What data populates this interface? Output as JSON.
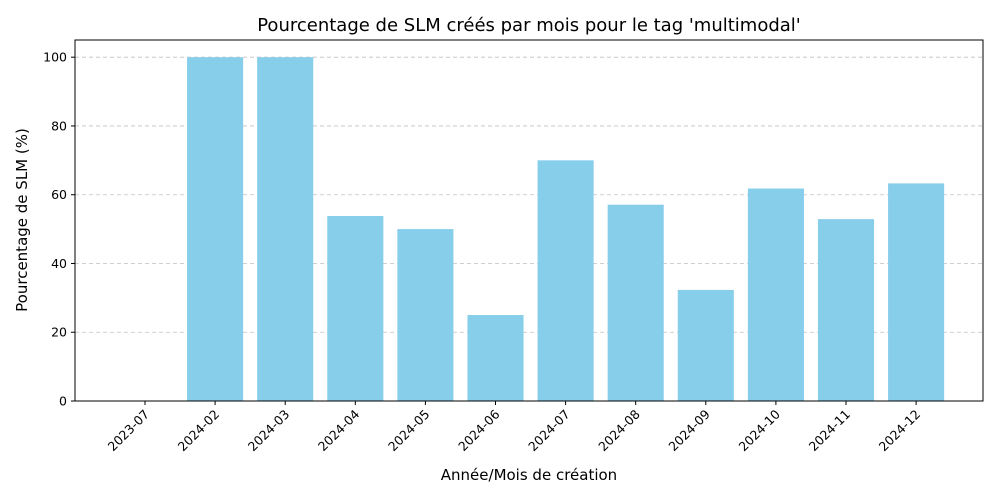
{
  "chart_data": {
    "type": "bar",
    "title": "Pourcentage de SLM créés par mois pour le tag 'multimodal'",
    "xlabel": "Année/Mois de création",
    "ylabel": "Pourcentage de SLM (%)",
    "categories": [
      "2023-07",
      "2024-02",
      "2024-03",
      "2024-04",
      "2024-05",
      "2024-06",
      "2024-07",
      "2024-08",
      "2024-09",
      "2024-10",
      "2024-11",
      "2024-12"
    ],
    "values": [
      0,
      100,
      100,
      53.8,
      50,
      25,
      70,
      57.1,
      32.3,
      61.8,
      52.9,
      63.3
    ],
    "ylim": [
      0,
      105
    ],
    "yticks": [
      0,
      20,
      40,
      60,
      80,
      100
    ],
    "grid": "y-dashed",
    "bar_color": "#87ceeb",
    "grid_color": "#c0c0c0"
  }
}
